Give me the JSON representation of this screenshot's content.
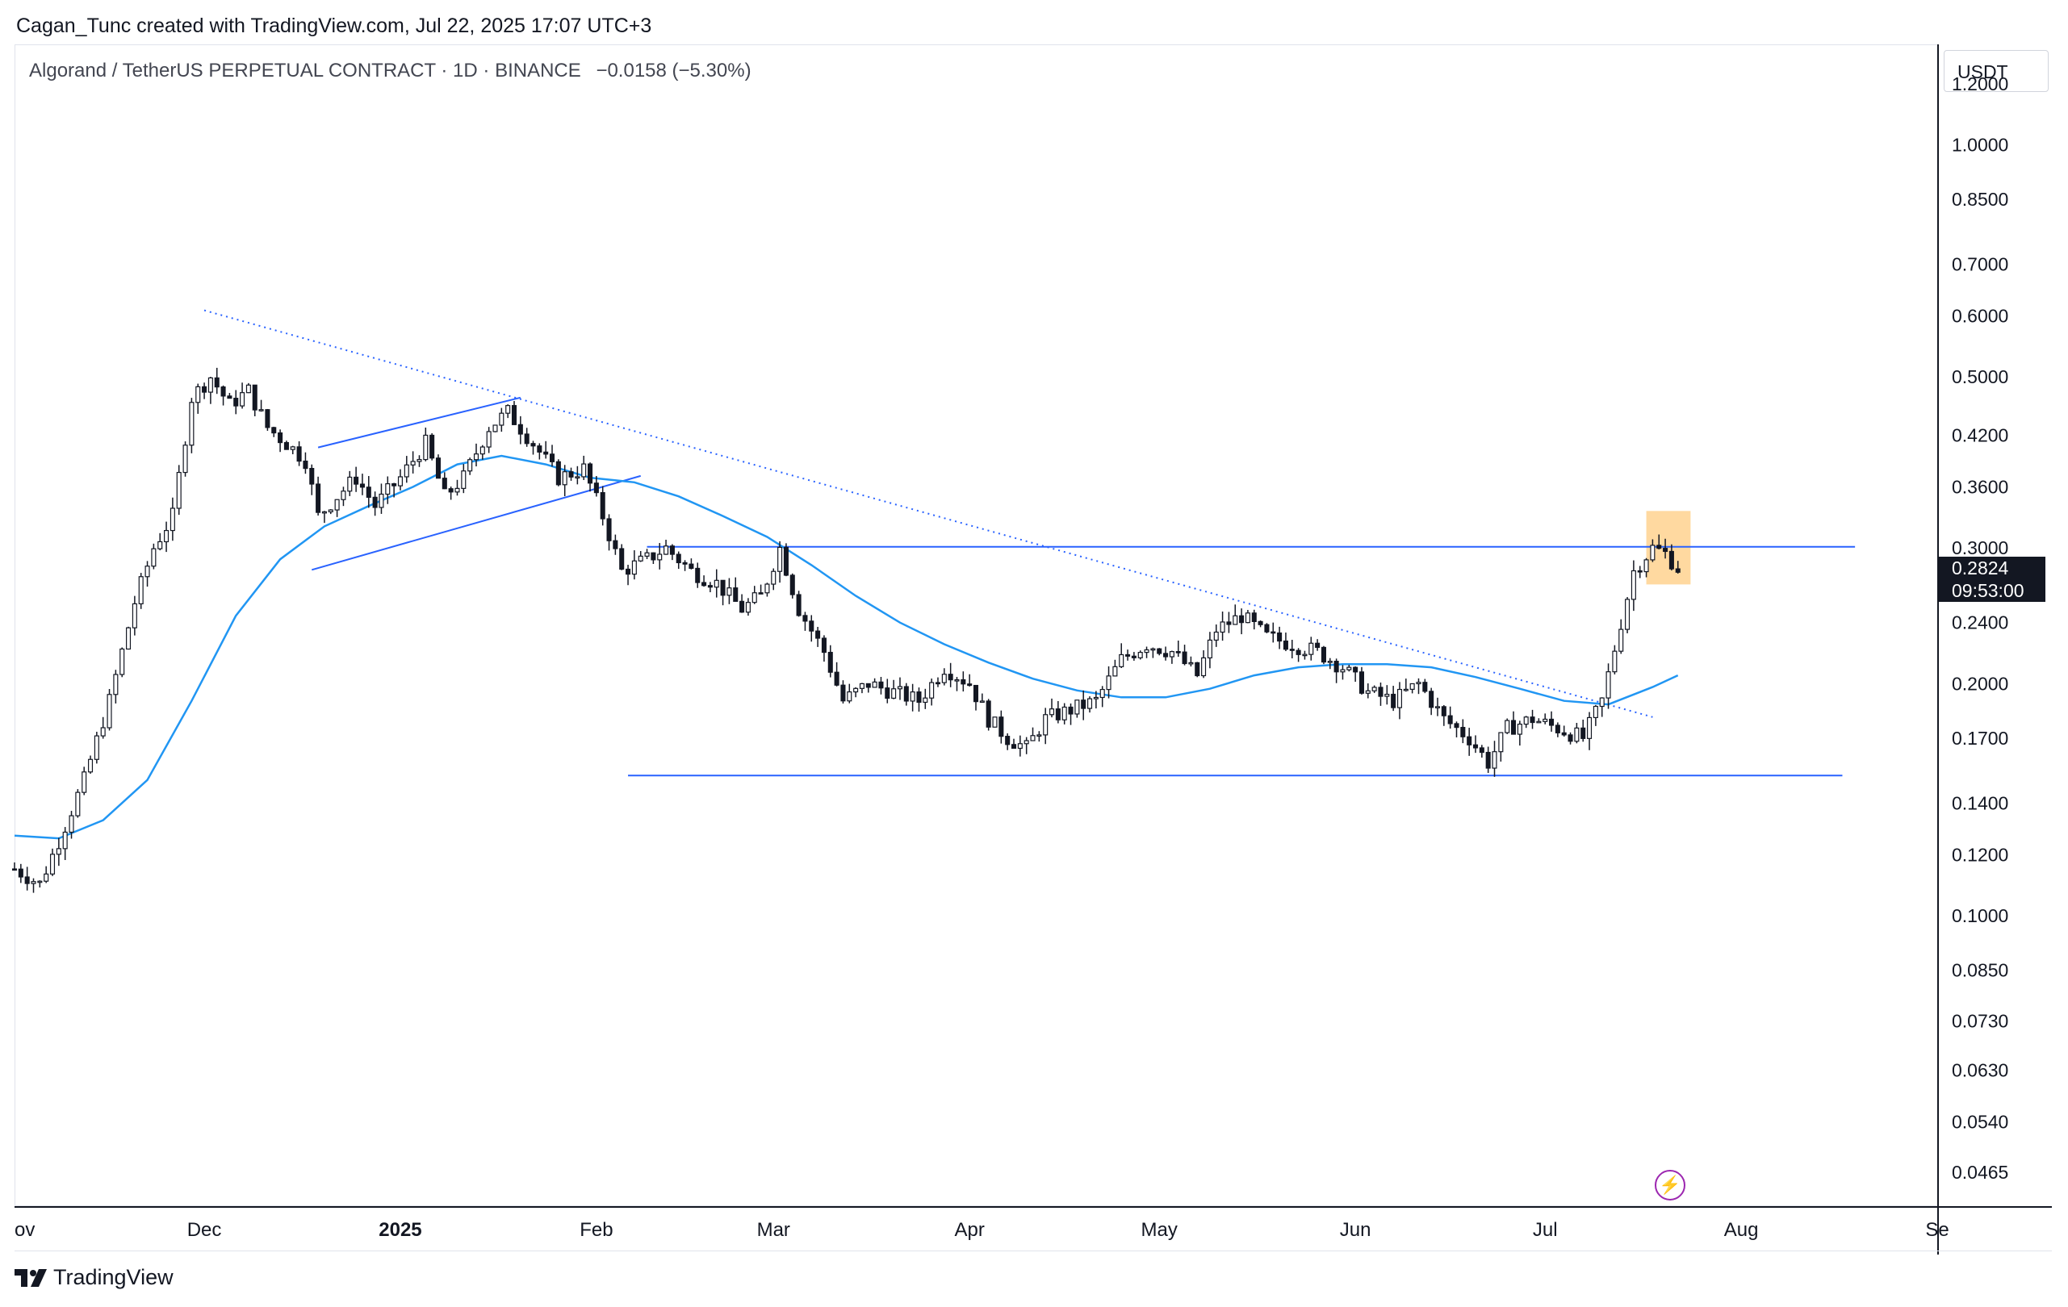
{
  "header": {
    "attribution": "Cagan_Tunc created with TradingView.com, Jul 22, 2025 17:07 UTC+3"
  },
  "legend": {
    "symbol": "Algorand / TetherUS PERPETUAL CONTRACT · 1D · BINANCE",
    "change": "−0.0158 (−5.30%)"
  },
  "price_axis": {
    "unit": "USDT",
    "ticks": [
      "1.2000",
      "1.0000",
      "0.8500",
      "0.7000",
      "0.6000",
      "0.5000",
      "0.4200",
      "0.3600",
      "0.3000",
      "0.2400",
      "0.2000",
      "0.1700",
      "0.1400",
      "0.1200",
      "0.1000",
      "0.0850",
      "0.0730",
      "0.0630",
      "0.0540",
      "0.0465"
    ],
    "current_price": "0.2824",
    "countdown": "09:53:00"
  },
  "time_axis": {
    "ticks": [
      "ov",
      "Dec",
      "2025",
      "Feb",
      "Mar",
      "Apr",
      "May",
      "Jun",
      "Jul",
      "Aug",
      "Se"
    ]
  },
  "footer": {
    "brand": "TradingView"
  },
  "colors": {
    "up_candle": "#ffffff",
    "down_candle": "#131722",
    "ma_line": "#2196f3",
    "drawing": "#2962ff",
    "highlight": "#ffcc80",
    "bolt": "#9c27b0"
  },
  "chart_data": {
    "type": "candlestick",
    "symbol": "ALGOUSDT.P",
    "timeframe": "1D",
    "scale": "log",
    "ylim": [
      0.042,
      1.35
    ],
    "x_range": [
      "2024-11-01",
      "2025-09-01"
    ],
    "ticks_y": [
      1.2,
      1.0,
      0.85,
      0.7,
      0.6,
      0.5,
      0.42,
      0.36,
      0.3,
      0.24,
      0.2,
      0.17,
      0.14,
      0.12,
      0.1,
      0.085,
      0.073,
      0.063,
      0.054,
      0.0465
    ],
    "price_path": [
      [
        "2024-11-01",
        0.115
      ],
      [
        "2024-11-05",
        0.11
      ],
      [
        "2024-11-08",
        0.125
      ],
      [
        "2024-11-12",
        0.15
      ],
      [
        "2024-11-16",
        0.19
      ],
      [
        "2024-11-20",
        0.255
      ],
      [
        "2024-11-23",
        0.3
      ],
      [
        "2024-11-26",
        0.33
      ],
      [
        "2024-11-29",
        0.47
      ],
      [
        "2024-12-02",
        0.5
      ],
      [
        "2024-12-05",
        0.46
      ],
      [
        "2024-12-08",
        0.48
      ],
      [
        "2024-12-11",
        0.43
      ],
      [
        "2024-12-14",
        0.41
      ],
      [
        "2024-12-17",
        0.39
      ],
      [
        "2024-12-19",
        0.33
      ],
      [
        "2024-12-22",
        0.35
      ],
      [
        "2024-12-25",
        0.37
      ],
      [
        "2024-12-28",
        0.34
      ],
      [
        "2025-01-01",
        0.37
      ],
      [
        "2025-01-05",
        0.41
      ],
      [
        "2025-01-08",
        0.35
      ],
      [
        "2025-01-11",
        0.37
      ],
      [
        "2025-01-15",
        0.43
      ],
      [
        "2025-01-18",
        0.45
      ],
      [
        "2025-01-22",
        0.41
      ],
      [
        "2025-01-26",
        0.37
      ],
      [
        "2025-01-30",
        0.38
      ],
      [
        "2025-02-02",
        0.33
      ],
      [
        "2025-02-05",
        0.28
      ],
      [
        "2025-02-09",
        0.29
      ],
      [
        "2025-02-12",
        0.3
      ],
      [
        "2025-02-16",
        0.28
      ],
      [
        "2025-02-20",
        0.27
      ],
      [
        "2025-02-24",
        0.25
      ],
      [
        "2025-02-27",
        0.26
      ],
      [
        "2025-03-02",
        0.3
      ],
      [
        "2025-03-05",
        0.25
      ],
      [
        "2025-03-09",
        0.22
      ],
      [
        "2025-03-12",
        0.19
      ],
      [
        "2025-03-16",
        0.2
      ],
      [
        "2025-03-20",
        0.195
      ],
      [
        "2025-03-24",
        0.19
      ],
      [
        "2025-03-28",
        0.21
      ],
      [
        "2025-04-01",
        0.2
      ],
      [
        "2025-04-04",
        0.18
      ],
      [
        "2025-04-07",
        0.17
      ],
      [
        "2025-04-10",
        0.165
      ],
      [
        "2025-04-13",
        0.18
      ],
      [
        "2025-04-17",
        0.185
      ],
      [
        "2025-04-21",
        0.19
      ],
      [
        "2025-04-25",
        0.215
      ],
      [
        "2025-04-29",
        0.225
      ],
      [
        "2025-05-03",
        0.22
      ],
      [
        "2025-05-07",
        0.205
      ],
      [
        "2025-05-10",
        0.235
      ],
      [
        "2025-05-14",
        0.245
      ],
      [
        "2025-05-18",
        0.23
      ],
      [
        "2025-05-22",
        0.225
      ],
      [
        "2025-05-26",
        0.22
      ],
      [
        "2025-05-30",
        0.21
      ],
      [
        "2025-06-03",
        0.195
      ],
      [
        "2025-06-07",
        0.19
      ],
      [
        "2025-06-11",
        0.2
      ],
      [
        "2025-06-15",
        0.18
      ],
      [
        "2025-06-19",
        0.17
      ],
      [
        "2025-06-22",
        0.158
      ],
      [
        "2025-06-25",
        0.175
      ],
      [
        "2025-06-29",
        0.18
      ],
      [
        "2025-07-03",
        0.175
      ],
      [
        "2025-07-07",
        0.17
      ],
      [
        "2025-07-10",
        0.19
      ],
      [
        "2025-07-13",
        0.24
      ],
      [
        "2025-07-15",
        0.28
      ],
      [
        "2025-07-18",
        0.3
      ],
      [
        "2025-07-20",
        0.295
      ],
      [
        "2025-07-22",
        0.2824
      ]
    ],
    "moving_average": [
      [
        "2024-11-01",
        0.127
      ],
      [
        "2024-11-08",
        0.126
      ],
      [
        "2024-11-15",
        0.133
      ],
      [
        "2024-11-22",
        0.15
      ],
      [
        "2024-11-29",
        0.19
      ],
      [
        "2024-12-06",
        0.245
      ],
      [
        "2024-12-13",
        0.29
      ],
      [
        "2024-12-20",
        0.32
      ],
      [
        "2024-12-27",
        0.34
      ],
      [
        "2025-01-03",
        0.36
      ],
      [
        "2025-01-10",
        0.385
      ],
      [
        "2025-01-17",
        0.395
      ],
      [
        "2025-01-24",
        0.385
      ],
      [
        "2025-01-31",
        0.37
      ],
      [
        "2025-02-07",
        0.365
      ],
      [
        "2025-02-14",
        0.35
      ],
      [
        "2025-02-21",
        0.33
      ],
      [
        "2025-02-28",
        0.31
      ],
      [
        "2025-03-07",
        0.285
      ],
      [
        "2025-03-14",
        0.26
      ],
      [
        "2025-03-21",
        0.24
      ],
      [
        "2025-03-28",
        0.225
      ],
      [
        "2025-04-04",
        0.213
      ],
      [
        "2025-04-11",
        0.203
      ],
      [
        "2025-04-18",
        0.196
      ],
      [
        "2025-04-25",
        0.192
      ],
      [
        "2025-05-02",
        0.192
      ],
      [
        "2025-05-09",
        0.197
      ],
      [
        "2025-05-16",
        0.205
      ],
      [
        "2025-05-23",
        0.21
      ],
      [
        "2025-05-30",
        0.212
      ],
      [
        "2025-06-06",
        0.212
      ],
      [
        "2025-06-13",
        0.21
      ],
      [
        "2025-06-20",
        0.204
      ],
      [
        "2025-06-27",
        0.197
      ],
      [
        "2025-07-04",
        0.19
      ],
      [
        "2025-07-11",
        0.188
      ],
      [
        "2025-07-18",
        0.198
      ],
      [
        "2025-07-22",
        0.205
      ]
    ],
    "drawings": {
      "descending_trendline": [
        [
          "2024-12-01",
          0.61
        ],
        [
          "2025-07-18",
          0.181
        ]
      ],
      "resistance_line": {
        "price": 0.301,
        "from": "2025-02-09",
        "to": "2025-08-19"
      },
      "support_line": {
        "price": 0.152,
        "from": "2025-02-06",
        "to": "2025-08-17"
      },
      "channel_upper": [
        [
          "2024-12-19",
          0.405
        ],
        [
          "2025-01-20",
          0.47
        ]
      ],
      "channel_lower": [
        [
          "2024-12-18",
          0.281
        ],
        [
          "2025-02-08",
          0.372
        ]
      ],
      "highlight_box": {
        "from": "2025-07-17",
        "to": "2025-07-24",
        "low": 0.269,
        "high": 0.335
      }
    }
  }
}
